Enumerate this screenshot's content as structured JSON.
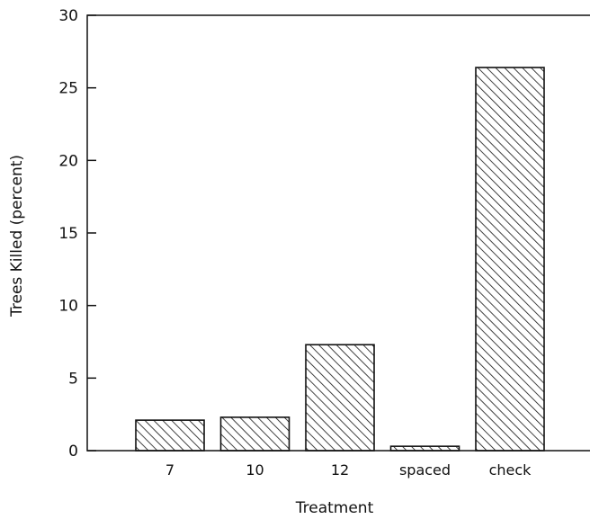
{
  "chart_data": {
    "type": "bar",
    "title": "",
    "xlabel": "Treatment",
    "ylabel": "Trees Killed (percent)",
    "categories": [
      "7",
      "10",
      "12",
      "spaced",
      "check"
    ],
    "values": [
      2.1,
      2.3,
      7.3,
      0.3,
      26.4
    ],
    "ylim": [
      0,
      30
    ],
    "yticks": [
      0,
      5,
      10,
      15,
      20,
      25,
      30
    ],
    "grid": false,
    "bar_fill": "diagonal-hatch",
    "colors": {
      "ink": "#111111",
      "background": "#ffffff"
    }
  }
}
